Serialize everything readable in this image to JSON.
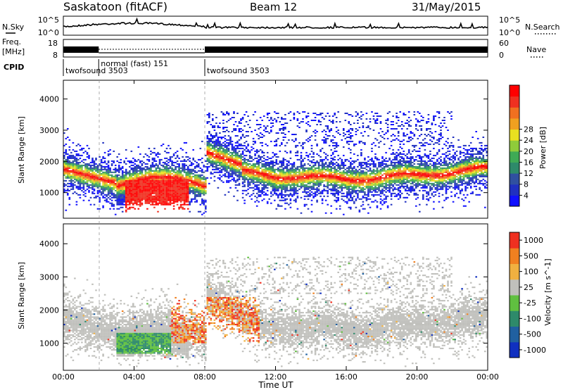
{
  "header": {
    "station": "Saskatoon (fitACF)",
    "beam": "Beam 12",
    "date": "31/May/2015"
  },
  "chart_data": [
    {
      "type": "line",
      "name_label": "N.Sky",
      "right_label": "N.Search",
      "yticks_left": [
        "10^5",
        "10^0"
      ],
      "yticks_right": [
        "10^5",
        "10^0"
      ],
      "series_color": "#000000"
    },
    {
      "type": "line",
      "left_label": "Freq.",
      "left_unit": "[MHz]",
      "right_label": "Nave",
      "yticks_left": [
        "18",
        "8"
      ],
      "yticks_right": [
        "60",
        "0"
      ],
      "cpid_label": "CPID",
      "cpid_segments": [
        {
          "label": "twofsound 3503",
          "start": 0.0,
          "end": 2.0
        },
        {
          "label": "normal (fast) 151",
          "start": 2.0,
          "end": 8.0
        },
        {
          "label": "twofsound 3503",
          "start": 8.0,
          "end": 24.0
        }
      ]
    },
    {
      "type": "heatmap",
      "quantity": "power",
      "ylabel": "Slant Range [km]",
      "yticks": [
        "1000",
        "2000",
        "3000",
        "4000"
      ],
      "ylim": [
        180,
        4600
      ],
      "colorbar_label": "Power [dB]",
      "colorbar_ticks": [
        "4",
        "8",
        "12",
        "16",
        "20",
        "24",
        "28"
      ],
      "colors": [
        "#1010ff",
        "#2030c0",
        "#3050a0",
        "#2e8a6a",
        "#3faa55",
        "#8fcc3a",
        "#e8e020",
        "#f0a020",
        "#f07020",
        "#ef3020",
        "#ff0000"
      ]
    },
    {
      "type": "heatmap",
      "quantity": "velocity",
      "ylabel": "Slant Range [km]",
      "yticks": [
        "1000",
        "2000",
        "3000",
        "4000"
      ],
      "ylim": [
        180,
        4600
      ],
      "colorbar_label": "Velocity [m s^-1]",
      "colorbar_ticks": [
        "1000",
        "500",
        "100",
        "25",
        "-25",
        "-100",
        "-500",
        "-1000"
      ],
      "colors": [
        "#1030c0",
        "#2060a0",
        "#2e8a6a",
        "#60c040",
        "#c0c0bc",
        "#f0b040",
        "#f08020",
        "#ef3020"
      ],
      "xlabel": "Time UT",
      "xticks": [
        "00:00",
        "04:00",
        "08:00",
        "12:00",
        "16:00",
        "20:00",
        "00:00"
      ]
    }
  ]
}
